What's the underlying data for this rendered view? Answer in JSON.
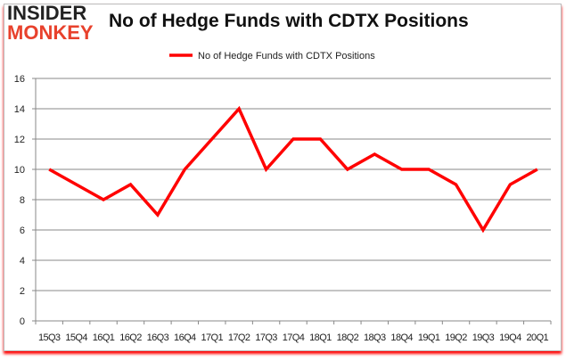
{
  "logo": {
    "line1": "INSIDER",
    "line2": "MONKEY"
  },
  "chart_data": {
    "type": "line",
    "title": "No of Hedge Funds with CDTX Positions",
    "categories": [
      "15Q3",
      "15Q4",
      "16Q1",
      "16Q2",
      "16Q3",
      "16Q4",
      "17Q1",
      "17Q2",
      "17Q3",
      "17Q4",
      "18Q1",
      "18Q2",
      "18Q3",
      "18Q4",
      "19Q1",
      "19Q2",
      "19Q3",
      "19Q4",
      "20Q1"
    ],
    "series": [
      {
        "name": "No of Hedge Funds with CDTX Positions",
        "values": [
          10,
          9,
          8,
          9,
          7,
          10,
          12,
          14,
          10,
          12,
          12,
          10,
          11,
          10,
          10,
          9,
          6,
          9,
          10
        ],
        "color": "#ff0000"
      }
    ],
    "ylim": [
      0,
      16
    ],
    "yticks": [
      0,
      2,
      4,
      6,
      8,
      10,
      12,
      14,
      16
    ],
    "grid": true,
    "legend": "top-center"
  }
}
